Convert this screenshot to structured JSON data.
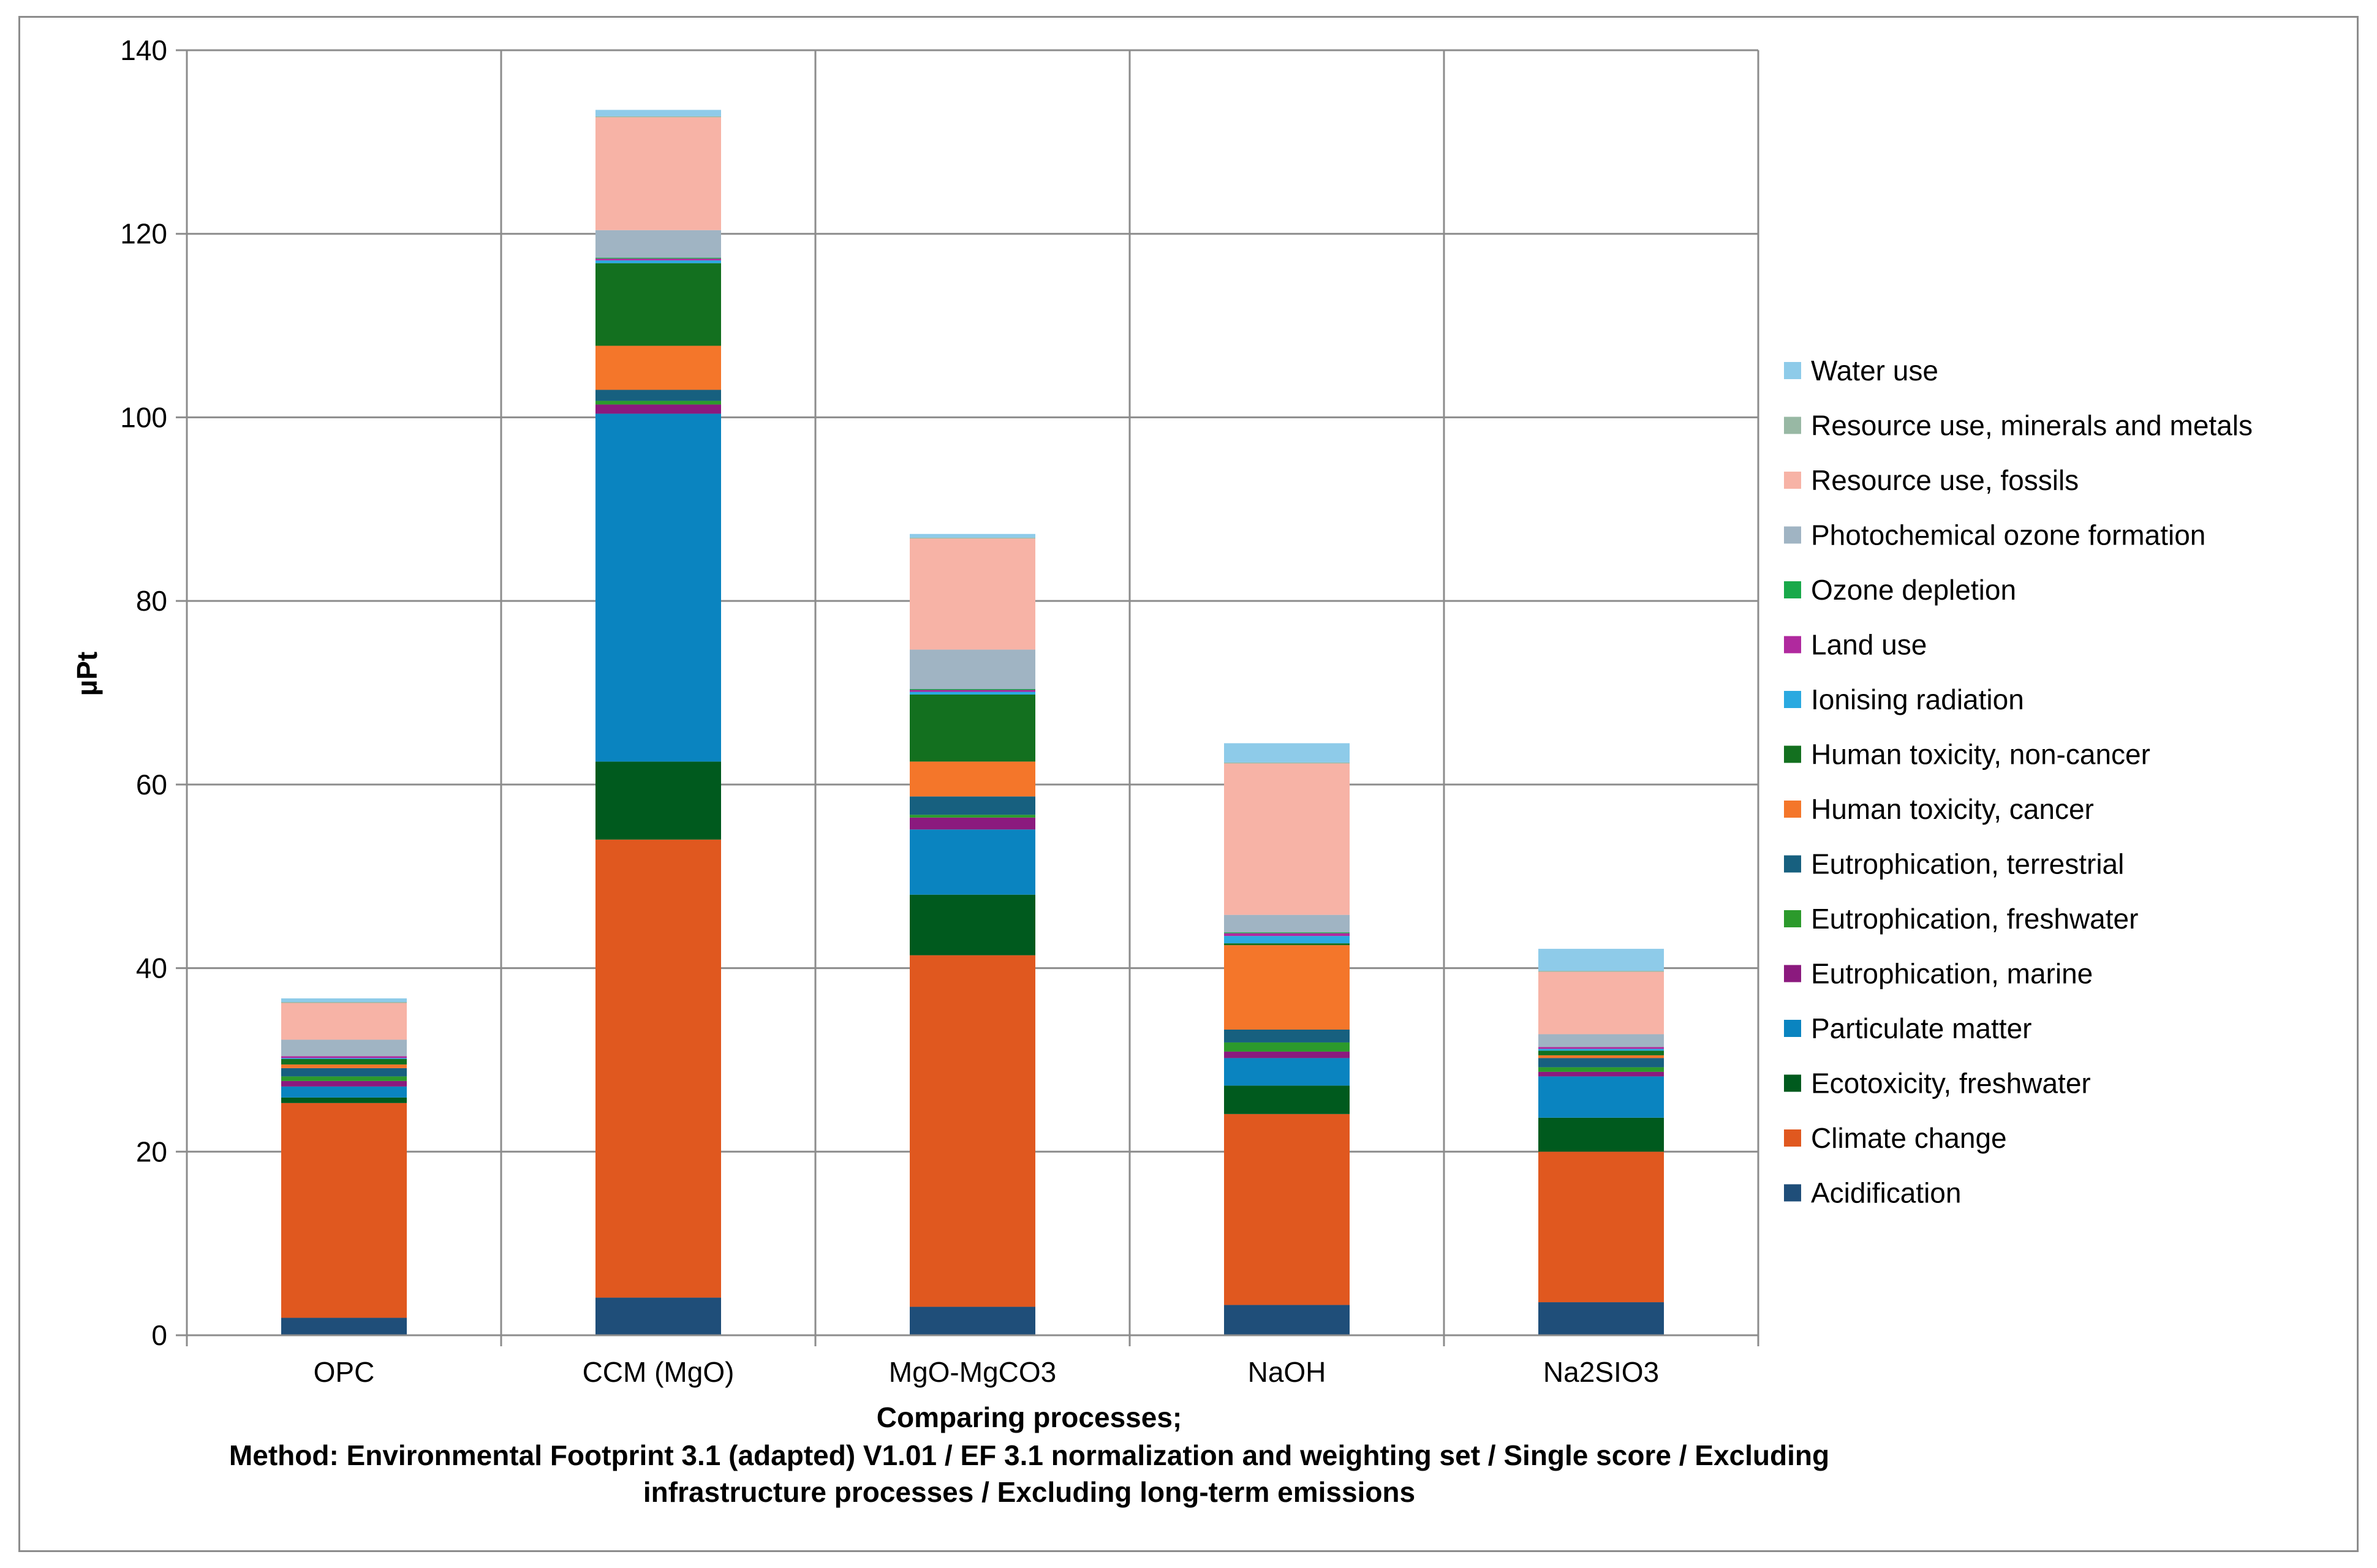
{
  "chart_data": {
    "type": "bar",
    "stacked": true,
    "ylabel": "µPt",
    "ylim": [
      0,
      140
    ],
    "yticks": [
      0,
      20,
      40,
      60,
      80,
      100,
      120,
      140
    ],
    "grid": true,
    "legend_position": "right",
    "xlabel_lines": [
      "Comparing processes;",
      "Method: Environmental Footprint 3.1 (adapted) V1.01 / EF 3.1 normalization and weighting set / Single score / Excluding",
      "infrastructure processes / Excluding long-term emissions"
    ],
    "categories": [
      "OPC",
      "CCM (MgO)",
      "MgO-MgCO3",
      "NaOH",
      "Na2SIO3"
    ],
    "series": [
      {
        "name": "Acidification",
        "color": "#1f4e79",
        "values": [
          1.9,
          4.1,
          3.1,
          3.3,
          3.6
        ]
      },
      {
        "name": "Climate change",
        "color": "#e0581f",
        "values": [
          23.4,
          49.9,
          38.3,
          20.8,
          16.4
        ]
      },
      {
        "name": "Ecotoxicity, freshwater",
        "color": "#005a1e",
        "values": [
          0.6,
          8.5,
          6.6,
          3.1,
          3.7
        ]
      },
      {
        "name": "Particulate matter",
        "color": "#0a84c0",
        "values": [
          1.2,
          37.9,
          7.1,
          3.0,
          4.5
        ]
      },
      {
        "name": "Eutrophication, marine",
        "color": "#8b1a7e",
        "values": [
          0.6,
          1.0,
          1.3,
          0.7,
          0.5
        ]
      },
      {
        "name": "Eutrophication, freshwater",
        "color": "#2c9a2c",
        "values": [
          0.5,
          0.4,
          0.3,
          1.0,
          0.5
        ]
      },
      {
        "name": "Eutrophication, terrestrial",
        "color": "#17607f",
        "values": [
          0.9,
          1.2,
          2.0,
          1.4,
          1.0
        ]
      },
      {
        "name": "Human toxicity, cancer",
        "color": "#f4762a",
        "values": [
          0.4,
          4.8,
          3.8,
          9.2,
          0.3
        ]
      },
      {
        "name": "Human toxicity, non-cancer",
        "color": "#13701f",
        "values": [
          0.6,
          9.0,
          7.3,
          0.2,
          0.5
        ]
      },
      {
        "name": "Ionising radiation",
        "color": "#2aa9e0",
        "values": [
          0.1,
          0.3,
          0.3,
          0.8,
          0.2
        ]
      },
      {
        "name": "Land use",
        "color": "#b0299e",
        "values": [
          0.2,
          0.2,
          0.2,
          0.3,
          0.2
        ]
      },
      {
        "name": "Ozone depletion",
        "color": "#19a94a",
        "values": [
          0.0,
          0.1,
          0.1,
          0.1,
          0.0
        ]
      },
      {
        "name": "Photochemical ozone formation",
        "color": "#a0b4c3",
        "values": [
          1.8,
          3.0,
          4.3,
          1.9,
          1.4
        ]
      },
      {
        "name": "Resource use, fossils",
        "color": "#f7b3a6",
        "values": [
          4.0,
          12.3,
          12.1,
          16.5,
          6.8
        ]
      },
      {
        "name": "Resource use, minerals and metals",
        "color": "#98b8a4",
        "values": [
          0.1,
          0.1,
          0.1,
          0.1,
          0.1
        ]
      },
      {
        "name": "Water use",
        "color": "#8ecbe9",
        "values": [
          0.4,
          0.7,
          0.4,
          2.1,
          2.4
        ]
      }
    ]
  }
}
